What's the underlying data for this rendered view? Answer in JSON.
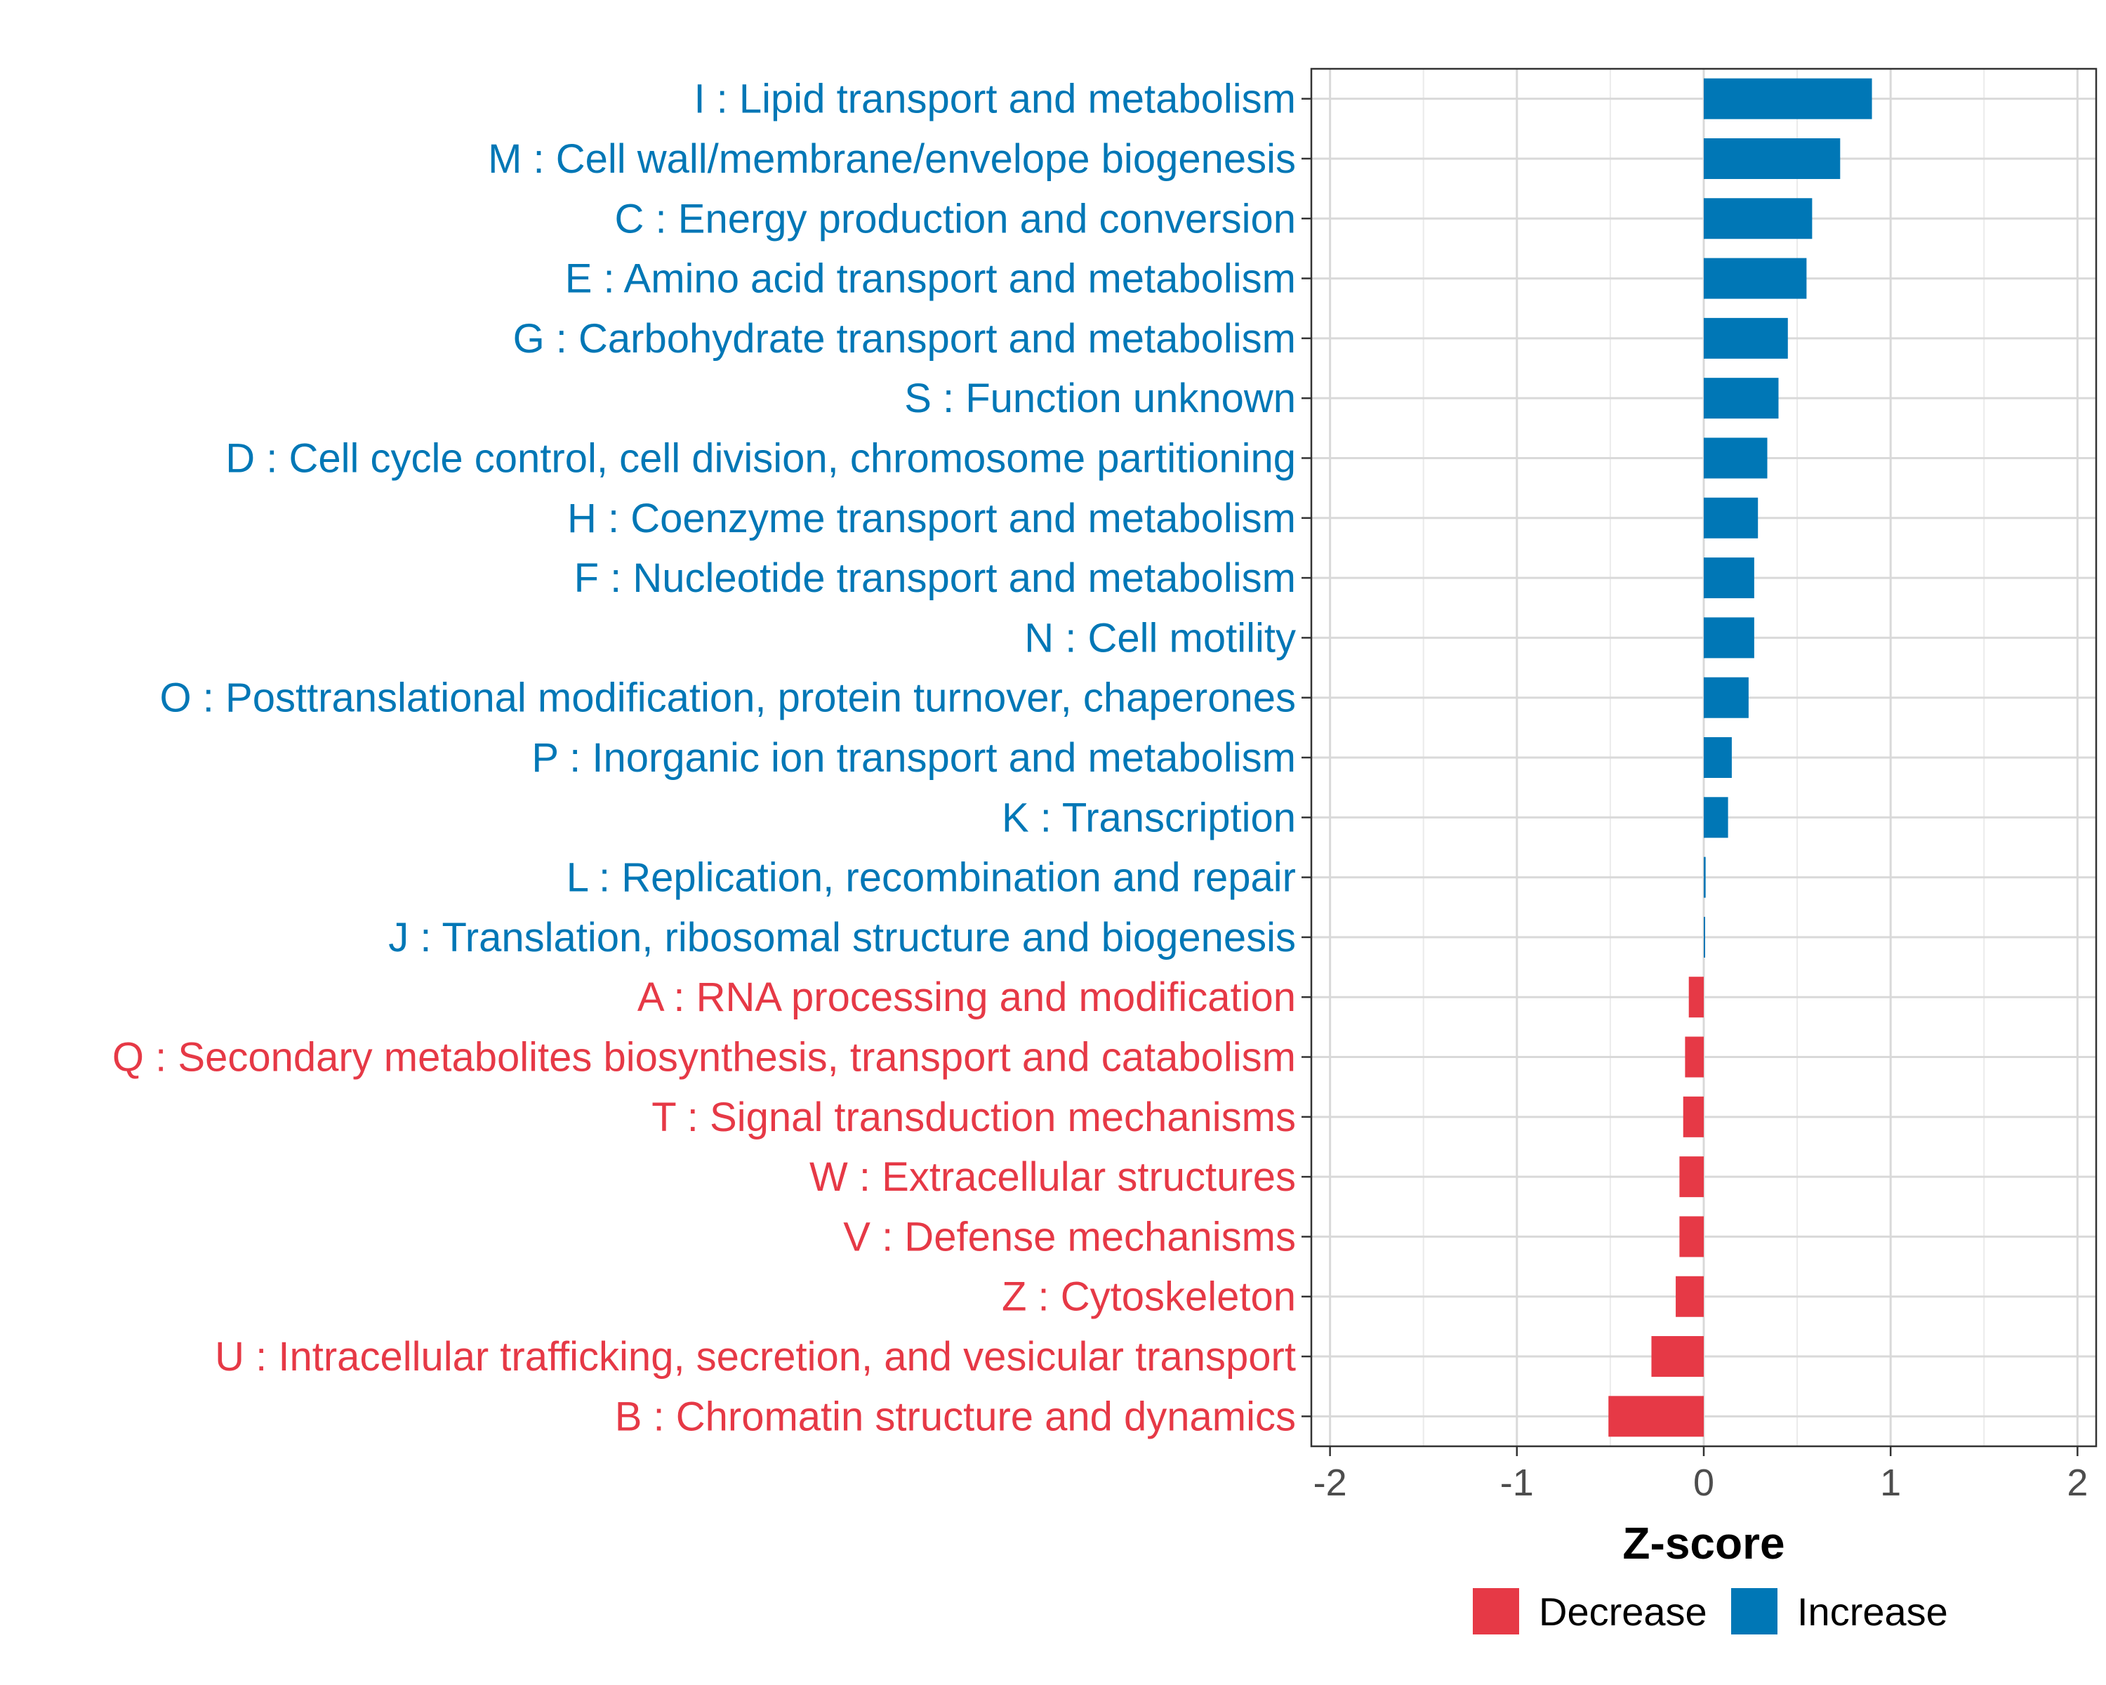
{
  "chart_data": {
    "type": "bar",
    "orientation": "horizontal",
    "title": "",
    "xlabel": "Z-score",
    "ylabel": "",
    "xlim": [
      -2.1,
      2.1
    ],
    "xticks": [
      -2,
      -1,
      0,
      1,
      2
    ],
    "xtick_labels": [
      "-2",
      "-1",
      "0",
      "1",
      "2"
    ],
    "grid": true,
    "colors": {
      "Decrease": "#e63946",
      "Increase": "#0077b6"
    },
    "categories": [
      "I : Lipid transport and metabolism",
      "M : Cell wall/membrane/envelope biogenesis",
      "C : Energy production and conversion",
      "E : Amino acid transport and metabolism",
      "G : Carbohydrate transport and metabolism",
      "S : Function unknown",
      "D : Cell cycle control, cell division, chromosome partitioning",
      "H : Coenzyme transport and metabolism",
      "F : Nucleotide transport and metabolism",
      "N : Cell motility",
      "O : Posttranslational modification, protein turnover, chaperones",
      "P : Inorganic ion transport and metabolism",
      "K : Transcription",
      "L : Replication, recombination and repair",
      "J : Translation, ribosomal structure and biogenesis",
      "A : RNA processing and modification",
      "Q : Secondary metabolites biosynthesis, transport and catabolism",
      "T : Signal transduction mechanisms",
      "W : Extracellular structures",
      "V : Defense mechanisms",
      "Z : Cytoskeleton",
      "U : Intracellular trafficking, secretion, and vesicular transport",
      "B : Chromatin structure and dynamics"
    ],
    "values": [
      0.9,
      0.73,
      0.58,
      0.55,
      0.45,
      0.4,
      0.34,
      0.29,
      0.27,
      0.27,
      0.24,
      0.15,
      0.13,
      0.01,
      0.005,
      -0.08,
      -0.1,
      -0.11,
      -0.13,
      -0.13,
      -0.15,
      -0.28,
      -0.51
    ],
    "groups": [
      "Increase",
      "Increase",
      "Increase",
      "Increase",
      "Increase",
      "Increase",
      "Increase",
      "Increase",
      "Increase",
      "Increase",
      "Increase",
      "Increase",
      "Increase",
      "Increase",
      "Increase",
      "Decrease",
      "Decrease",
      "Decrease",
      "Decrease",
      "Decrease",
      "Decrease",
      "Decrease",
      "Decrease"
    ],
    "legend": {
      "position": "bottom",
      "entries": [
        {
          "label": "Decrease",
          "color": "#e63946"
        },
        {
          "label": "Increase",
          "color": "#0077b6"
        }
      ]
    }
  }
}
